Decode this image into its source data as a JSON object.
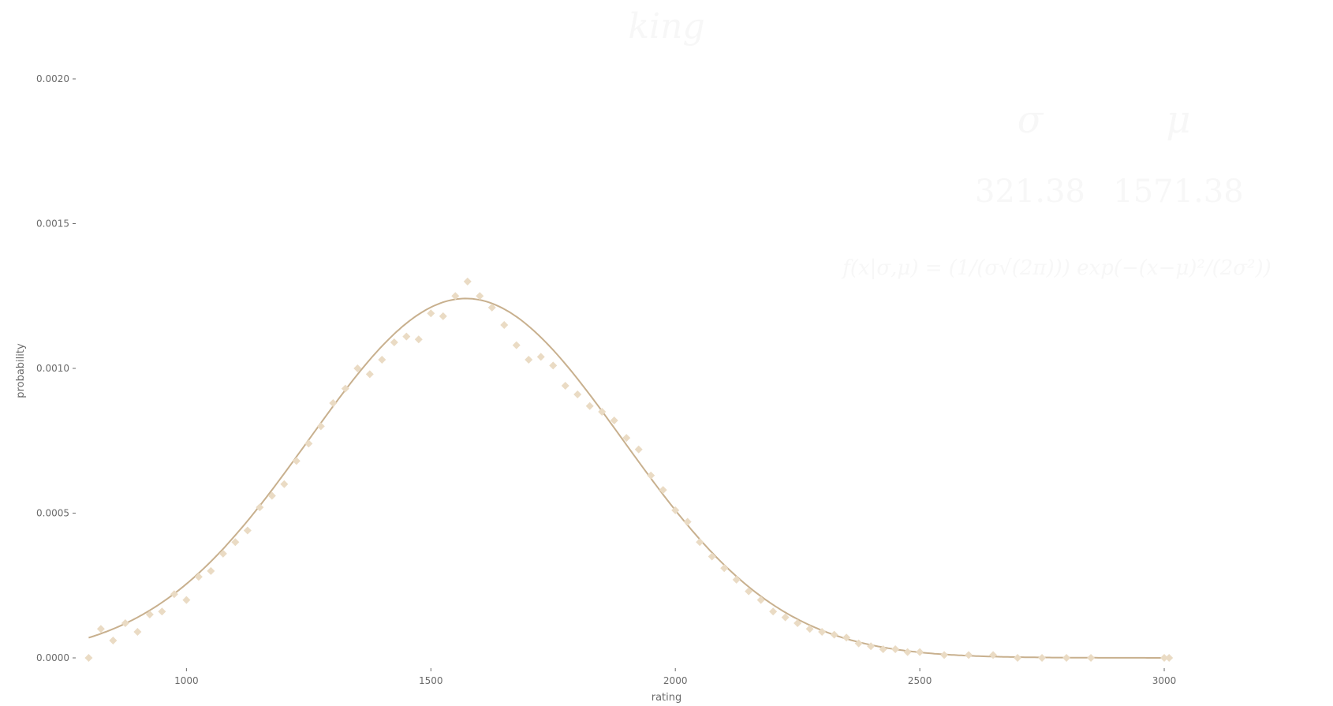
{
  "chart_data": {
    "type": "scatter",
    "title": "king",
    "xlabel": "rating",
    "ylabel": "probability",
    "xlim": [
      780,
      3200
    ],
    "ylim": [
      -3e-05,
      0.002
    ],
    "x_ticks": [
      {
        "value": 1000,
        "label": "1000"
      },
      {
        "value": 1500,
        "label": "1500"
      },
      {
        "value": 2000,
        "label": "2000"
      },
      {
        "value": 2500,
        "label": "2500"
      },
      {
        "value": 3000,
        "label": "3000"
      }
    ],
    "y_ticks": [
      {
        "value": 0.0,
        "label": "0.0000"
      },
      {
        "value": 0.0005,
        "label": "0.0005"
      },
      {
        "value": 0.001,
        "label": "0.0010"
      },
      {
        "value": 0.0015,
        "label": "0.0015"
      },
      {
        "value": 0.002,
        "label": "0.0020"
      }
    ],
    "grid": false,
    "colors": {
      "points": "#eadbc4",
      "curve": "#c8b08e",
      "axis_text": "#6b6b6b",
      "faint_text": "#f7f7f7"
    },
    "fit": {
      "label_sigma": "σ",
      "label_mu": "μ",
      "sigma": 321.38,
      "mu": 1571.38,
      "sigma_text": "321.38",
      "mu_text": "1571.38",
      "formula": "f(x|σ,μ) = (1/(σ√(2π))) exp(−(x−μ)²/(2σ²))"
    },
    "series": [
      {
        "x": [
          800,
          825,
          850,
          875,
          900,
          925,
          950,
          975,
          1000,
          1025,
          1050,
          1075,
          1100,
          1125,
          1150,
          1175,
          1200,
          1225,
          1250,
          1275,
          1300,
          1325,
          1350,
          1375,
          1400,
          1425,
          1450,
          1475,
          1500,
          1525,
          1550,
          1575,
          1600,
          1625,
          1650,
          1675,
          1700,
          1725,
          1750,
          1775,
          1800,
          1825,
          1850,
          1875,
          1900,
          1925,
          1950,
          1975,
          2000,
          2025,
          2050,
          2075,
          2100,
          2125,
          2150,
          2175,
          2200,
          2225,
          2250,
          2275,
          2300,
          2325,
          2350,
          2375,
          2400,
          2425,
          2450,
          2475,
          2500,
          2550,
          2600,
          2650,
          2700,
          2750,
          2800,
          2850,
          3000,
          3010
        ],
        "y": [
          0.0,
          0.0001,
          6e-05,
          0.00012,
          9e-05,
          0.00015,
          0.00016,
          0.00022,
          0.0002,
          0.00028,
          0.0003,
          0.00036,
          0.0004,
          0.00044,
          0.00052,
          0.00056,
          0.0006,
          0.00068,
          0.00074,
          0.0008,
          0.00088,
          0.00093,
          0.001,
          0.00098,
          0.00103,
          0.00109,
          0.00111,
          0.0011,
          0.00119,
          0.00118,
          0.00125,
          0.0013,
          0.00125,
          0.00121,
          0.00115,
          0.00108,
          0.00103,
          0.00104,
          0.00101,
          0.00094,
          0.00091,
          0.00087,
          0.00085,
          0.00082,
          0.00076,
          0.00072,
          0.00063,
          0.00058,
          0.00051,
          0.00047,
          0.0004,
          0.00035,
          0.00031,
          0.00027,
          0.00023,
          0.0002,
          0.00016,
          0.00014,
          0.00012,
          0.0001,
          9e-05,
          8e-05,
          7e-05,
          5e-05,
          4e-05,
          3e-05,
          3e-05,
          2e-05,
          2e-05,
          1e-05,
          1e-05,
          1e-05,
          0.0,
          0.0,
          0.0,
          0.0,
          0.0,
          0.0
        ]
      }
    ]
  }
}
